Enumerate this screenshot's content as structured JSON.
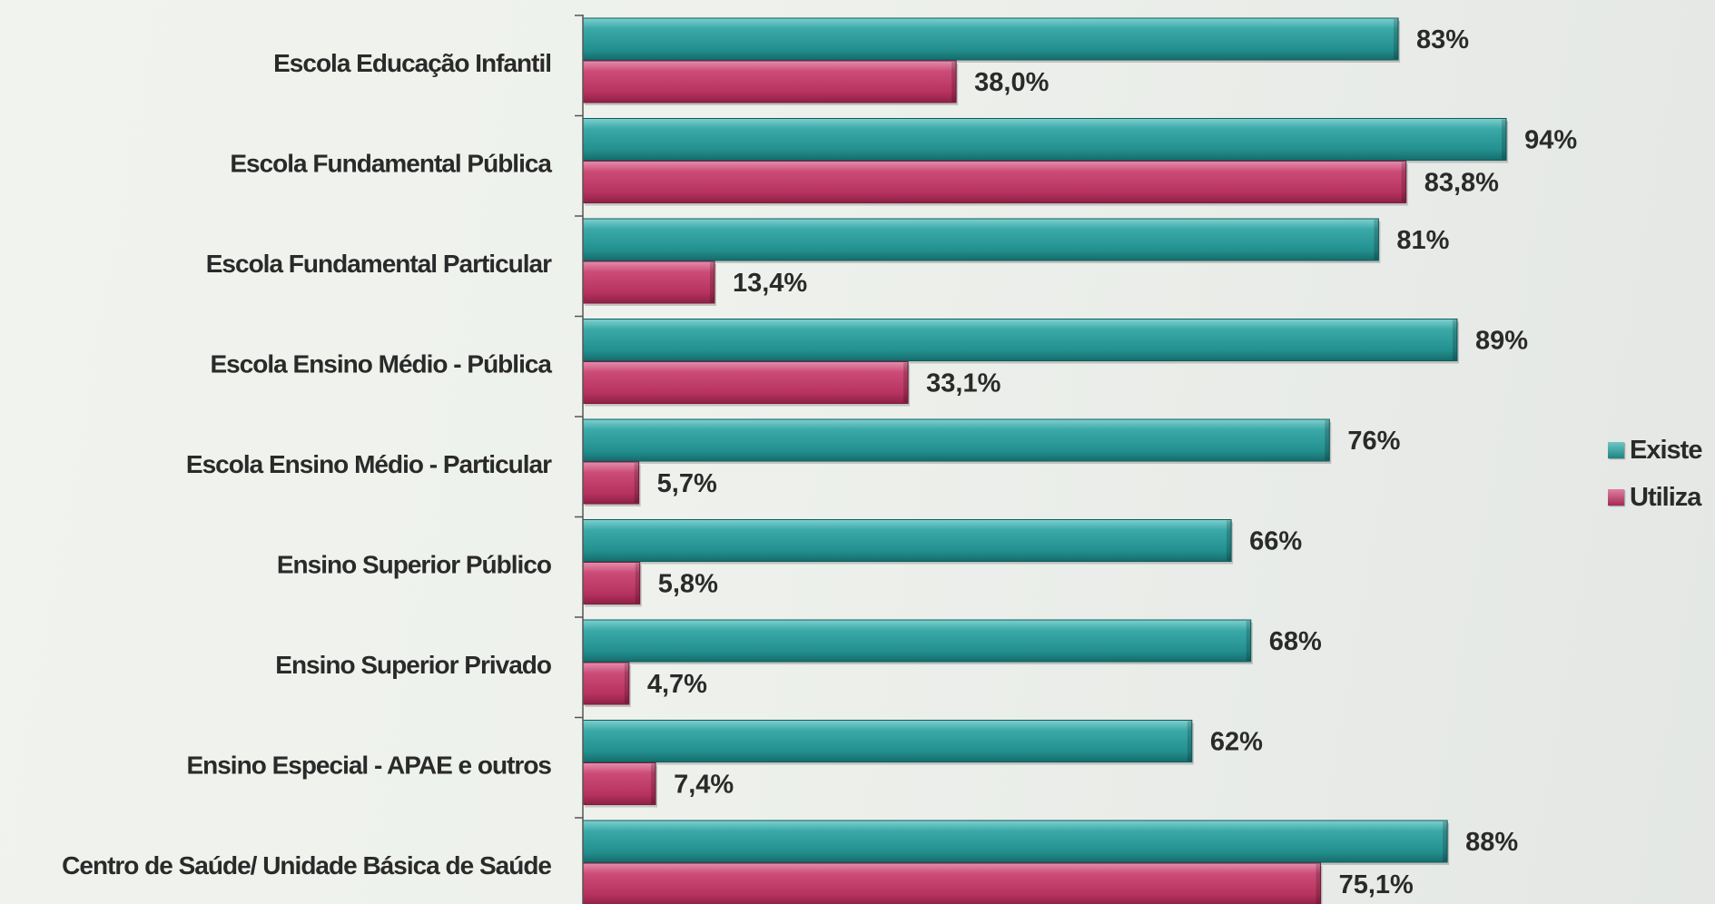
{
  "chart_data": {
    "type": "bar",
    "orientation": "horizontal",
    "categories": [
      "Escola Educação  Infantil",
      "Escola Fundamental  Pública",
      "Escola Fundamental  Particular",
      "Escola Ensino  Médio - Pública",
      "Escola Ensino  Médio - Particular",
      "Ensino Superior Público",
      "Ensino Superior Privado",
      "Ensino Especial  - APAE  e outros",
      "Centro de Saúde/  Unidade  Básica  de Saúde"
    ],
    "series": [
      {
        "name": "Existe",
        "color": "#2a9a9a",
        "values": [
          83,
          94,
          81,
          89,
          76,
          66,
          68,
          62,
          88
        ],
        "labels": [
          "83%",
          "94%",
          "81%",
          "89%",
          "76%",
          "66%",
          "68%",
          "62%",
          "88%"
        ]
      },
      {
        "name": "Utiliza",
        "color": "#c33f6b",
        "values": [
          38.0,
          83.8,
          13.4,
          33.1,
          5.7,
          5.8,
          4.7,
          7.4,
          75.1
        ],
        "labels": [
          "38,0%",
          "83,8%",
          "13,4%",
          "33,1%",
          "5,7%",
          "5,8%",
          "4,7%",
          "7,4%",
          "75,1%"
        ]
      }
    ],
    "xlim": [
      0,
      100
    ],
    "grid": false,
    "legend_position": "right"
  }
}
